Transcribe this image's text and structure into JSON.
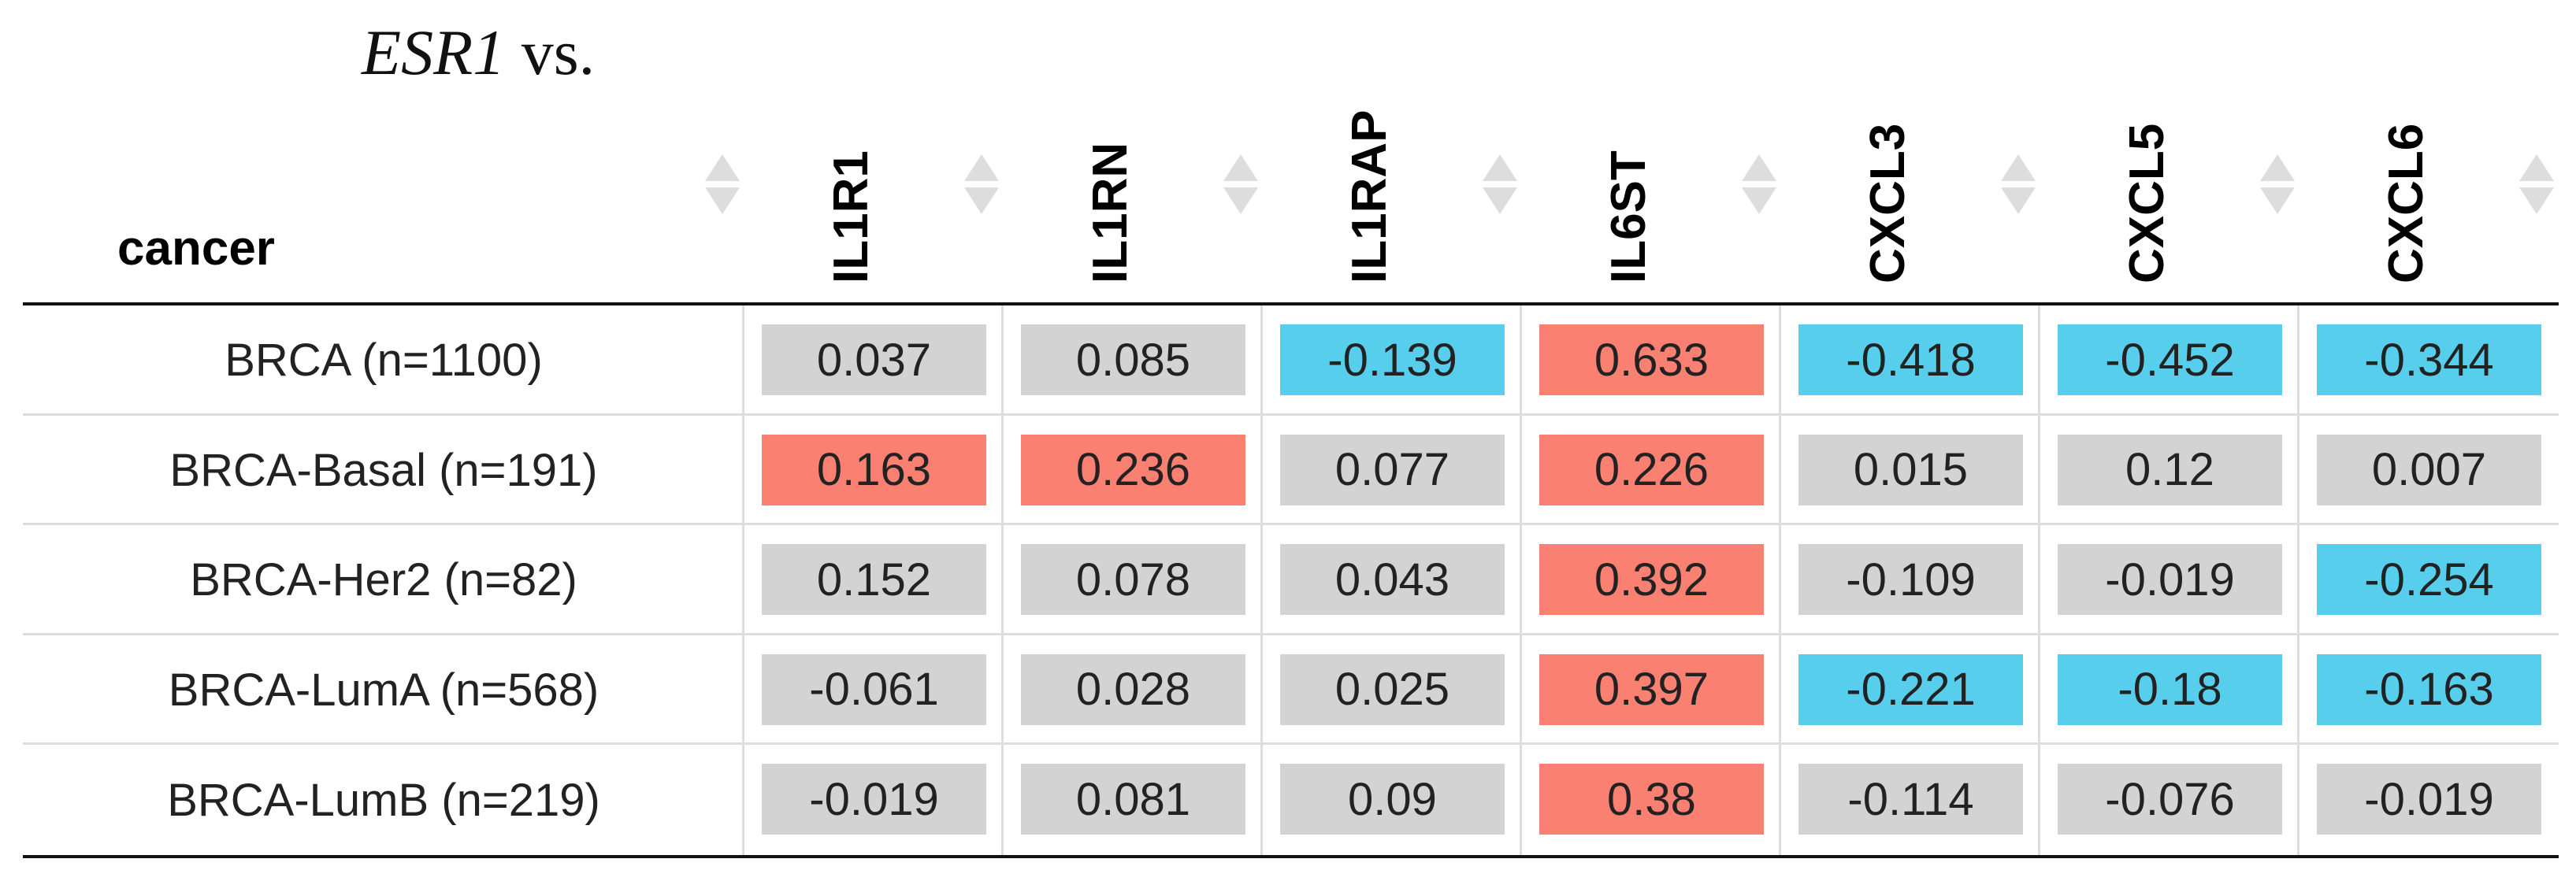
{
  "header": {
    "gene": "ESR1",
    "suffix": "vs."
  },
  "table": {
    "columns": [
      "cancer",
      "IL1R1",
      "IL1RN",
      "IL1RAP",
      "IL6ST",
      "CXCL3",
      "CXCL5",
      "CXCL6"
    ],
    "rows": [
      [
        "BRCA (n=1100)",
        0.037,
        0.085,
        -0.139,
        0.633,
        -0.418,
        -0.452,
        -0.344
      ],
      [
        "BRCA-Basal (n=191)",
        0.163,
        0.236,
        0.077,
        0.226,
        0.015,
        0.12,
        0.007
      ],
      [
        "BRCA-Her2 (n=82)",
        0.152,
        0.078,
        0.043,
        0.392,
        -0.109,
        -0.019,
        -0.254
      ],
      [
        "BRCA-LumA (n=568)",
        -0.061,
        0.028,
        0.025,
        0.397,
        -0.221,
        -0.18,
        -0.163
      ],
      [
        "BRCA-LumB (n=219)",
        -0.019,
        0.081,
        0.09,
        0.38,
        -0.114,
        -0.076,
        -0.019
      ]
    ],
    "cell_colors": [
      [
        "#d3d3d3",
        "#d3d3d3",
        "#57cfec",
        "#fa8072",
        "#57cfec",
        "#57cfec",
        "#57cfec"
      ],
      [
        "#fa8072",
        "#fa8072",
        "#d3d3d3",
        "#fa8072",
        "#d3d3d3",
        "#d3d3d3",
        "#d3d3d3"
      ],
      [
        "#d3d3d3",
        "#d3d3d3",
        "#d3d3d3",
        "#fa8072",
        "#d3d3d3",
        "#d3d3d3",
        "#57cfec"
      ],
      [
        "#d3d3d3",
        "#d3d3d3",
        "#d3d3d3",
        "#fa8072",
        "#57cfec",
        "#57cfec",
        "#57cfec"
      ],
      [
        "#d3d3d3",
        "#d3d3d3",
        "#d3d3d3",
        "#fa8072",
        "#d3d3d3",
        "#d3d3d3",
        "#d3d3d3"
      ]
    ]
  }
}
